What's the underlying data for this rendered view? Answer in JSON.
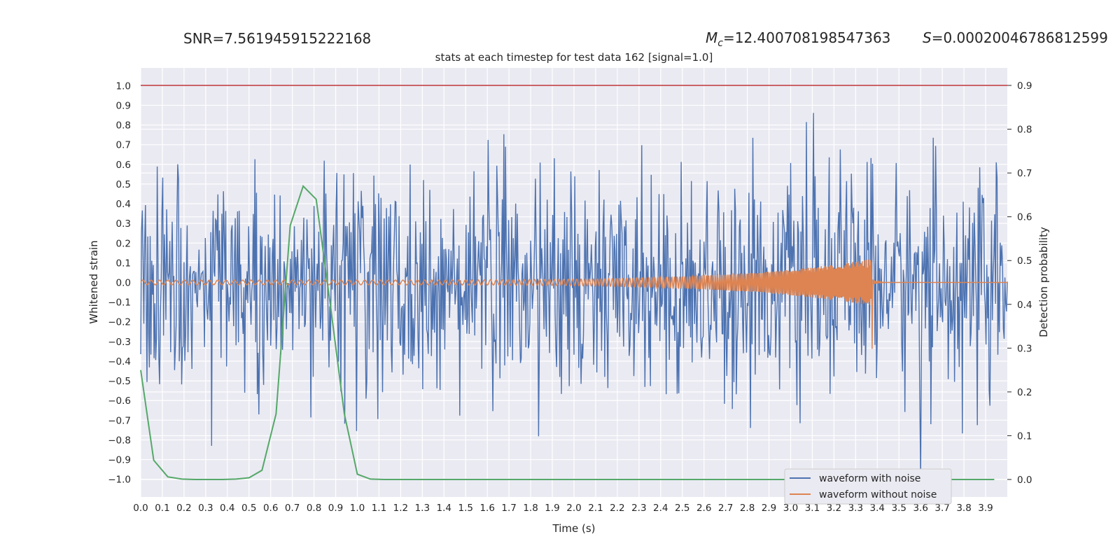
{
  "header": {
    "snr_text": "SNR=7.561945915222168",
    "mc_symbol": "M",
    "mc_sub": "c",
    "mc_value": "=12.400708198547363",
    "s_symbol": "S",
    "s_value": "=0.00020046786812599"
  },
  "chart_data": {
    "type": "line",
    "title": "stats at each timestep for test data 162 [signal=1.0]",
    "xlabel": "Time (s)",
    "ylabel_left": "Whitened strain",
    "ylabel_right": "Detection probability",
    "xlim": [
      0.0,
      4.0
    ],
    "ylim_left": [
      -1.09,
      1.09
    ],
    "ylim_right": [
      -0.04,
      0.94
    ],
    "x_ticks": [
      "0.0",
      "0.1",
      "0.2",
      "0.3",
      "0.4",
      "0.5",
      "0.6",
      "0.7",
      "0.8",
      "0.9",
      "1.0",
      "1.1",
      "1.2",
      "1.3",
      "1.4",
      "1.5",
      "1.6",
      "1.7",
      "1.8",
      "1.9",
      "2.0",
      "2.1",
      "2.2",
      "2.3",
      "2.4",
      "2.5",
      "2.6",
      "2.7",
      "2.8",
      "2.9",
      "3.0",
      "3.1",
      "3.2",
      "3.3",
      "3.4",
      "3.5",
      "3.6",
      "3.7",
      "3.8",
      "3.9"
    ],
    "y_ticks_left": [
      "1.0",
      "0.9",
      "0.8",
      "0.7",
      "0.6",
      "0.5",
      "0.4",
      "0.3",
      "0.2",
      "0.1",
      "0.0",
      "−0.1",
      "−0.2",
      "−0.3",
      "−0.4",
      "−0.5",
      "−0.6",
      "−0.7",
      "−0.8",
      "−0.9",
      "−1.0"
    ],
    "y_ticks_right": [
      "0.9",
      "0.8",
      "0.7",
      "0.6",
      "0.5",
      "0.4",
      "0.3",
      "0.2",
      "0.1",
      "0.0"
    ],
    "grid": true,
    "legend_position": "bottom-right",
    "series": [
      {
        "name": "waveform with noise",
        "axis": "left",
        "description_style": "dense noisy strain",
        "peaks": {
          "max": 0.98,
          "min": -0.99
        }
      },
      {
        "name": "waveform without noise",
        "axis": "left",
        "chirp": {
          "start_amp": 0.012,
          "merger_time": 3.375,
          "merger_max": 0.3,
          "merger_min": -0.45,
          "start_freq": 26,
          "end_freq": 220
        }
      },
      {
        "name": "",
        "axis": "right",
        "x": [
          0.0,
          0.06,
          0.125,
          0.19,
          0.25,
          0.31,
          0.375,
          0.44,
          0.5,
          0.56,
          0.625,
          0.69,
          0.75,
          0.81,
          0.875,
          0.94,
          1.0,
          1.06,
          1.125,
          1.5,
          2.0,
          2.5,
          3.0,
          3.5,
          3.94
        ],
        "values": [
          0.25,
          0.044,
          0.006,
          0.001,
          0.0,
          0.0,
          0.0,
          0.001,
          0.004,
          0.021,
          0.15,
          0.58,
          0.67,
          0.64,
          0.4,
          0.15,
          0.012,
          0.001,
          0.0,
          0.0,
          0.0,
          0.0,
          0.0,
          0.0,
          0.0
        ]
      },
      {
        "name": "",
        "axis": "right",
        "type": "threshold",
        "values": [
          0.9
        ]
      }
    ],
    "colors": {
      "noise": "#4c72b0",
      "clean": "#dd8452",
      "prob": "#55a868",
      "threshold": "#c44e52",
      "plot_bg": "#eaeaf2",
      "grid": "#ffffff"
    }
  }
}
